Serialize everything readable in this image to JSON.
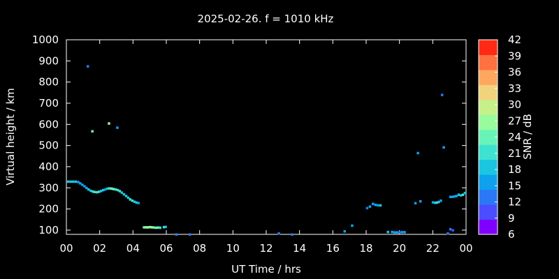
{
  "chart_data": {
    "type": "scatter",
    "title": "2025-02-26. f = 1010 kHz",
    "xlabel": "UT Time / hrs",
    "ylabel": "Virtual height / km",
    "xlim": [
      0,
      24
    ],
    "ylim": [
      80,
      1000
    ],
    "x_tick_labels": [
      "00",
      "02",
      "04",
      "06",
      "08",
      "10",
      "12",
      "14",
      "16",
      "18",
      "20",
      "22",
      "00"
    ],
    "y_ticks": [
      100,
      200,
      300,
      400,
      500,
      600,
      700,
      800,
      900,
      1000
    ],
    "grid": false,
    "colorbar": {
      "label": "SNR / dB",
      "ticks": [
        6,
        9,
        12,
        15,
        18,
        21,
        24,
        27,
        30,
        33,
        36,
        39,
        42
      ],
      "colors": [
        "#8000ff",
        "#4b4dff",
        "#2b78f7",
        "#0fa1ee",
        "#1bc6e0",
        "#3fe2d0",
        "#68f4b9",
        "#98fb9c",
        "#c6f089",
        "#f1d27d",
        "#ffa760",
        "#ff7140",
        "#ff2a16"
      ]
    },
    "points": [
      {
        "x": 0.1,
        "y": 330,
        "snr": 18
      },
      {
        "x": 0.25,
        "y": 330,
        "snr": 18
      },
      {
        "x": 0.4,
        "y": 330,
        "snr": 18
      },
      {
        "x": 0.55,
        "y": 330,
        "snr": 18
      },
      {
        "x": 0.7,
        "y": 328,
        "snr": 17
      },
      {
        "x": 0.82,
        "y": 322,
        "snr": 17
      },
      {
        "x": 0.95,
        "y": 315,
        "snr": 16
      },
      {
        "x": 1.08,
        "y": 308,
        "snr": 16
      },
      {
        "x": 1.2,
        "y": 300,
        "snr": 15
      },
      {
        "x": 1.32,
        "y": 293,
        "snr": 18
      },
      {
        "x": 1.45,
        "y": 287,
        "snr": 19
      },
      {
        "x": 1.58,
        "y": 283,
        "snr": 20
      },
      {
        "x": 1.7,
        "y": 281,
        "snr": 21
      },
      {
        "x": 1.82,
        "y": 280,
        "snr": 22
      },
      {
        "x": 1.95,
        "y": 282,
        "snr": 20
      },
      {
        "x": 2.08,
        "y": 286,
        "snr": 19
      },
      {
        "x": 2.2,
        "y": 290,
        "snr": 18
      },
      {
        "x": 2.32,
        "y": 293,
        "snr": 17
      },
      {
        "x": 2.45,
        "y": 297,
        "snr": 18
      },
      {
        "x": 2.58,
        "y": 298,
        "snr": 20
      },
      {
        "x": 2.7,
        "y": 297,
        "snr": 23
      },
      {
        "x": 2.82,
        "y": 295,
        "snr": 24
      },
      {
        "x": 2.95,
        "y": 293,
        "snr": 22
      },
      {
        "x": 3.08,
        "y": 290,
        "snr": 21
      },
      {
        "x": 3.2,
        "y": 285,
        "snr": 20
      },
      {
        "x": 3.32,
        "y": 278,
        "snr": 19
      },
      {
        "x": 3.45,
        "y": 270,
        "snr": 18
      },
      {
        "x": 3.58,
        "y": 262,
        "snr": 18
      },
      {
        "x": 3.7,
        "y": 254,
        "snr": 19
      },
      {
        "x": 3.82,
        "y": 246,
        "snr": 20
      },
      {
        "x": 3.95,
        "y": 240,
        "snr": 20
      },
      {
        "x": 4.08,
        "y": 235,
        "snr": 19
      },
      {
        "x": 4.2,
        "y": 231,
        "snr": 18
      },
      {
        "x": 4.32,
        "y": 229,
        "snr": 17
      },
      {
        "x": 1.28,
        "y": 875,
        "snr": 13
      },
      {
        "x": 1.55,
        "y": 568,
        "snr": 25
      },
      {
        "x": 2.55,
        "y": 605,
        "snr": 27
      },
      {
        "x": 3.05,
        "y": 585,
        "snr": 17
      },
      {
        "x": 4.65,
        "y": 114,
        "snr": 25
      },
      {
        "x": 4.78,
        "y": 114,
        "snr": 26
      },
      {
        "x": 4.9,
        "y": 114,
        "snr": 27
      },
      {
        "x": 5.02,
        "y": 115,
        "snr": 27
      },
      {
        "x": 5.14,
        "y": 114,
        "snr": 26
      },
      {
        "x": 5.26,
        "y": 113,
        "snr": 25
      },
      {
        "x": 5.38,
        "y": 112,
        "snr": 24
      },
      {
        "x": 5.5,
        "y": 113,
        "snr": 23
      },
      {
        "x": 5.62,
        "y": 112,
        "snr": 22
      },
      {
        "x": 5.85,
        "y": 115,
        "snr": 21
      },
      {
        "x": 5.95,
        "y": 116,
        "snr": 19
      },
      {
        "x": 6.6,
        "y": 80,
        "snr": 12
      },
      {
        "x": 7.4,
        "y": 80,
        "snr": 12
      },
      {
        "x": 12.75,
        "y": 85,
        "snr": 12
      },
      {
        "x": 13.55,
        "y": 80,
        "snr": 12
      },
      {
        "x": 16.7,
        "y": 95,
        "snr": 17
      },
      {
        "x": 17.15,
        "y": 122,
        "snr": 15
      },
      {
        "x": 18.05,
        "y": 205,
        "snr": 14
      },
      {
        "x": 18.22,
        "y": 212,
        "snr": 16
      },
      {
        "x": 18.4,
        "y": 225,
        "snr": 15
      },
      {
        "x": 18.55,
        "y": 220,
        "snr": 16
      },
      {
        "x": 18.7,
        "y": 218,
        "snr": 17
      },
      {
        "x": 18.85,
        "y": 218,
        "snr": 19
      },
      {
        "x": 19.3,
        "y": 92,
        "snr": 19
      },
      {
        "x": 19.55,
        "y": 92,
        "snr": 17
      },
      {
        "x": 19.7,
        "y": 90,
        "snr": 16
      },
      {
        "x": 19.85,
        "y": 90,
        "snr": 15
      },
      {
        "x": 20.0,
        "y": 90,
        "snr": 14
      },
      {
        "x": 20.15,
        "y": 91,
        "snr": 15
      },
      {
        "x": 20.3,
        "y": 91,
        "snr": 16
      },
      {
        "x": 20.95,
        "y": 228,
        "snr": 16
      },
      {
        "x": 21.1,
        "y": 465,
        "snr": 15
      },
      {
        "x": 21.25,
        "y": 237,
        "snr": 15
      },
      {
        "x": 22.0,
        "y": 232,
        "snr": 16
      },
      {
        "x": 22.12,
        "y": 230,
        "snr": 18
      },
      {
        "x": 22.24,
        "y": 231,
        "snr": 20
      },
      {
        "x": 22.36,
        "y": 234,
        "snr": 19
      },
      {
        "x": 22.48,
        "y": 240,
        "snr": 17
      },
      {
        "x": 22.55,
        "y": 740,
        "snr": 13
      },
      {
        "x": 22.65,
        "y": 492,
        "snr": 15
      },
      {
        "x": 22.9,
        "y": 85,
        "snr": 12
      },
      {
        "x": 23.05,
        "y": 105,
        "snr": 12
      },
      {
        "x": 23.2,
        "y": 100,
        "snr": 11
      },
      {
        "x": 23.05,
        "y": 258,
        "snr": 15
      },
      {
        "x": 23.18,
        "y": 258,
        "snr": 16
      },
      {
        "x": 23.3,
        "y": 260,
        "snr": 16
      },
      {
        "x": 23.42,
        "y": 262,
        "snr": 17
      },
      {
        "x": 23.55,
        "y": 268,
        "snr": 18
      },
      {
        "x": 23.68,
        "y": 265,
        "snr": 19
      },
      {
        "x": 23.8,
        "y": 268,
        "snr": 20
      },
      {
        "x": 23.92,
        "y": 276,
        "snr": 19
      }
    ]
  }
}
